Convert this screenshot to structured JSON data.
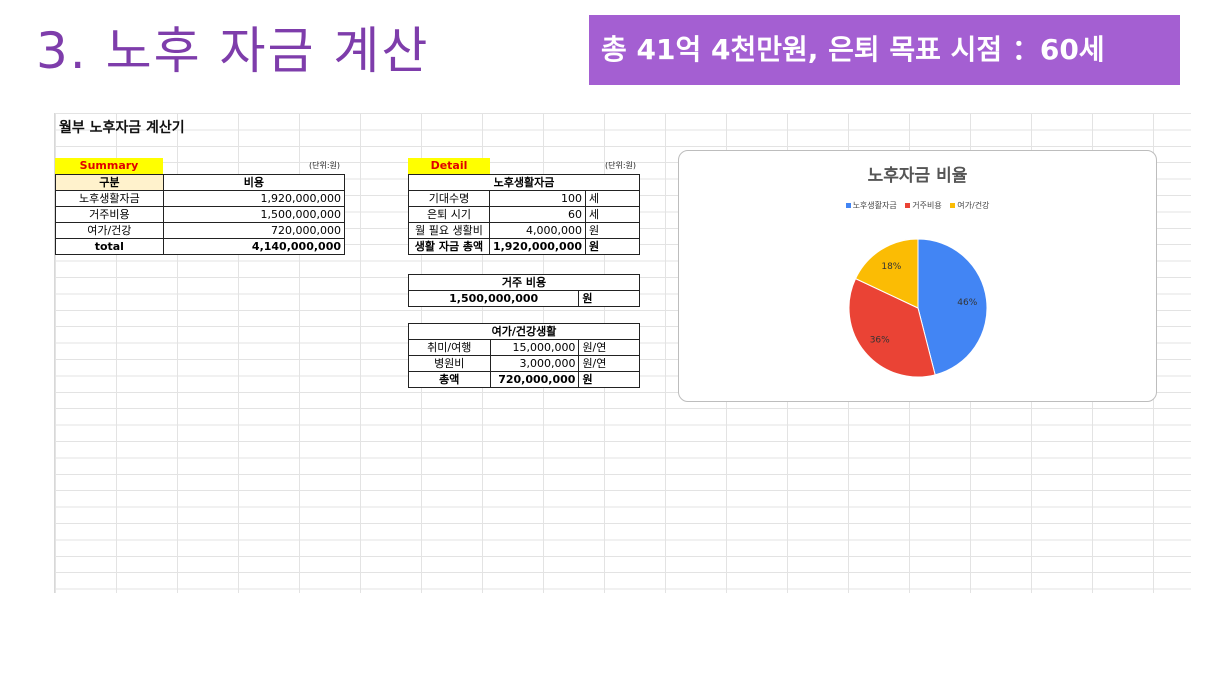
{
  "slide": {
    "title": "3. 노후 자금 계산",
    "banner": "총 41억 4천만원, 은퇴 목표 시점 ：60세"
  },
  "sheet": {
    "title": "월부 노후자금 계산기",
    "summary": {
      "tag": "Summary",
      "unit": "(단위:원)",
      "headers": [
        "구분",
        "비용"
      ],
      "rows": [
        {
          "label": "노후생활자금",
          "value": "1,920,000,000"
        },
        {
          "label": "거주비용",
          "value": "1,500,000,000"
        },
        {
          "label": "여가/건강",
          "value": "720,000,000"
        }
      ],
      "total": {
        "label": "total",
        "value": "4,140,000,000"
      }
    },
    "detail": {
      "tag": "Detail",
      "unit": "(단위:원)",
      "living": {
        "header": "노후생활자금",
        "rows": [
          {
            "label": "기대수명",
            "value": "100",
            "unit": "세"
          },
          {
            "label": "은퇴 시기",
            "value": "60",
            "unit": "세"
          },
          {
            "label": "월 필요 생활비",
            "value": "4,000,000",
            "unit": "원"
          }
        ],
        "total": {
          "label": "생활 자금 총액",
          "value": "1,920,000,000",
          "unit": "원"
        }
      },
      "housing": {
        "header": "거주 비용",
        "value": "1,500,000,000",
        "unit": "원"
      },
      "leisure": {
        "header": "여가/건강생활",
        "rows": [
          {
            "label": "취미/여행",
            "value": "15,000,000",
            "unit": "원/연"
          },
          {
            "label": "병원비",
            "value": "3,000,000",
            "unit": "원/연"
          }
        ],
        "total": {
          "label": "총액",
          "value": "720,000,000",
          "unit": "원"
        }
      }
    }
  },
  "chart_data": {
    "type": "pie",
    "title": "노후자금 비율",
    "categories": [
      "노후생활자금",
      "거주비용",
      "여가/건강"
    ],
    "values": [
      46,
      36,
      18
    ],
    "labels": [
      "46%",
      "36%",
      "18%"
    ],
    "colors": [
      "#4285f4",
      "#ea4335",
      "#fbbc04"
    ],
    "legend": "top"
  }
}
